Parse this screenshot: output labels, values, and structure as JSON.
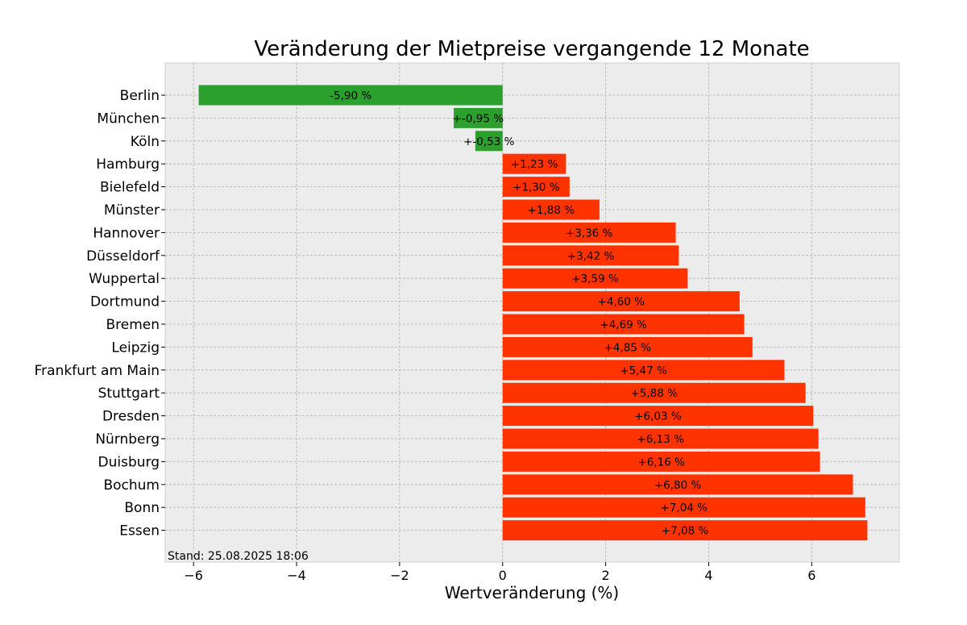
{
  "chart_data": {
    "type": "bar",
    "orientation": "horizontal",
    "title": "Veränderung der Mietpreise vergangende 12 Monate",
    "xlabel": "Wertveränderung (%)",
    "ylabel": "",
    "xlim": [
      -6.55,
      7.7
    ],
    "xticks": [
      -6,
      -4,
      -2,
      0,
      2,
      4,
      6
    ],
    "xtick_labels": [
      "−6",
      "−4",
      "−2",
      "0",
      "2",
      "4",
      "6"
    ],
    "grid": true,
    "annotation": "Stand: 25.08.2025 18:06",
    "colors": {
      "negative": "#2ca02c",
      "positive": "#ff3300",
      "background": "#ececec"
    },
    "categories": [
      "Berlin",
      "München",
      "Köln",
      "Hamburg",
      "Bielefeld",
      "Münster",
      "Hannover",
      "Düsseldorf",
      "Wuppertal",
      "Dortmund",
      "Bremen",
      "Leipzig",
      "Frankfurt am Main",
      "Stuttgart",
      "Dresden",
      "Nürnberg",
      "Duisburg",
      "Bochum",
      "Bonn",
      "Essen"
    ],
    "values": [
      -5.9,
      -0.95,
      -0.53,
      1.23,
      1.3,
      1.88,
      3.36,
      3.42,
      3.59,
      4.6,
      4.69,
      4.85,
      5.47,
      5.88,
      6.03,
      6.13,
      6.16,
      6.8,
      7.04,
      7.08
    ],
    "data_labels": [
      "-5,90 %",
      "+-0,95 %",
      "+-0,53 %",
      "+1,23 %",
      "+1,30 %",
      "+1,88 %",
      "+3,36 %",
      "+3,42 %",
      "+3,59 %",
      "+4,60 %",
      "+4,69 %",
      "+4,85 %",
      "+5,47 %",
      "+5,88 %",
      "+6,03 %",
      "+6,13 %",
      "+6,16 %",
      "+6,80 %",
      "+7,04 %",
      "+7,08 %"
    ]
  }
}
